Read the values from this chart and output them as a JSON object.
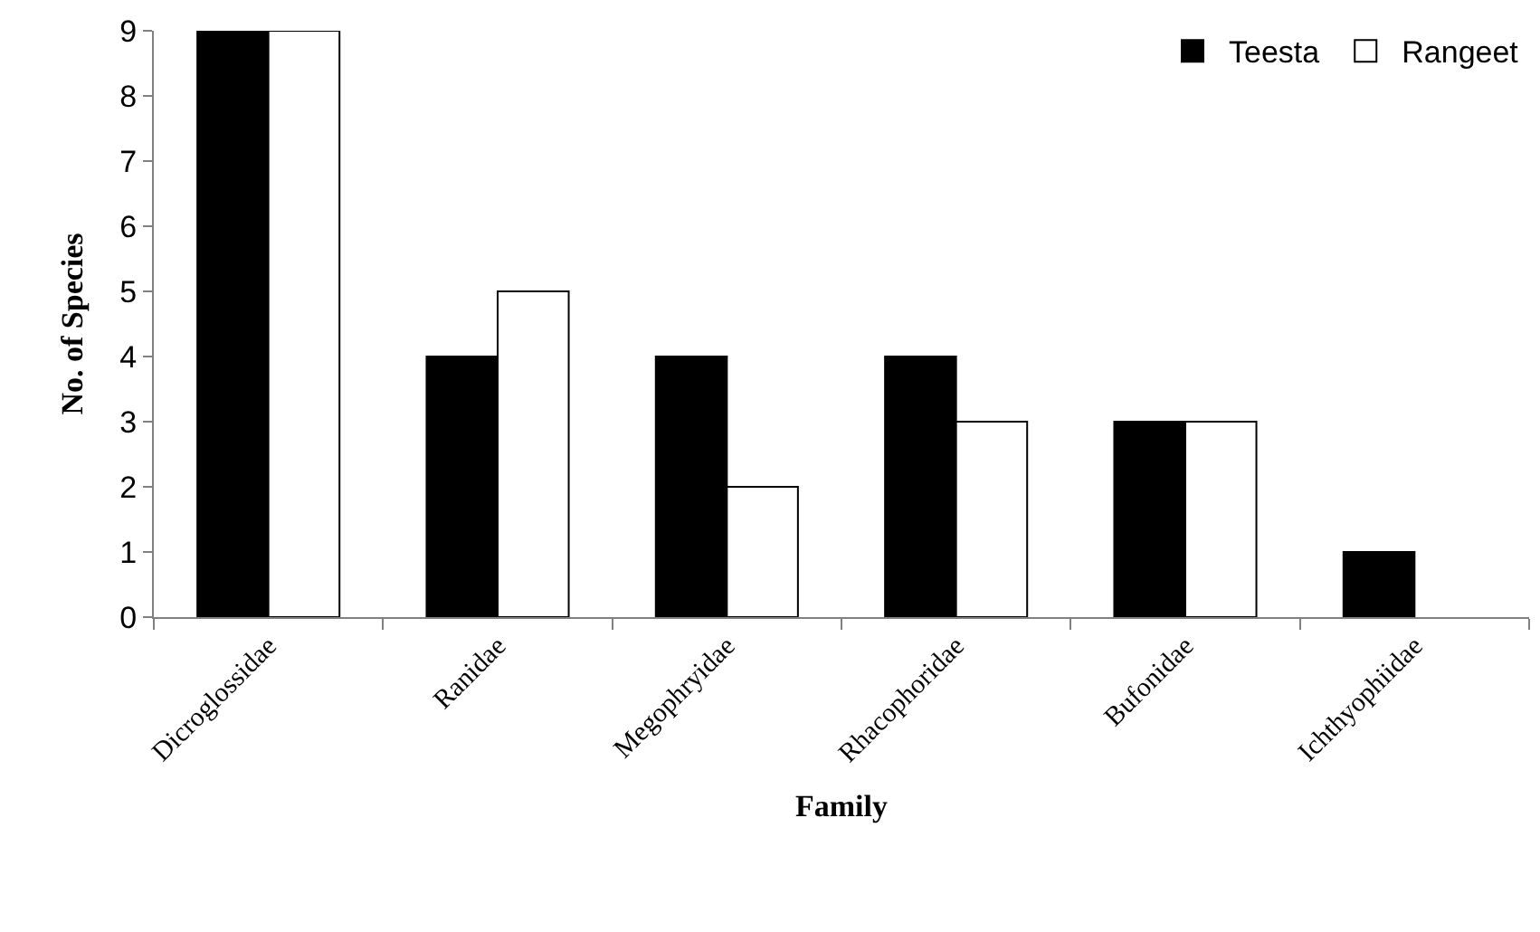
{
  "chart_data": {
    "type": "bar",
    "xlabel": "Family",
    "ylabel": "No. of Species",
    "categories": [
      "Dicroglossidae",
      "Ranidae",
      "Megophryidae",
      "Rhacophoridae",
      "Bufonidae",
      "Ichthyophiidae"
    ],
    "series": [
      {
        "name": "Teesta",
        "color": "#000000",
        "values": [
          9,
          4,
          4,
          4,
          3,
          1
        ]
      },
      {
        "name": "Rangeet",
        "color": "#ffffff",
        "values": [
          9,
          5,
          2,
          3,
          3,
          null
        ]
      }
    ],
    "ylim": [
      0,
      9
    ],
    "yticks": [
      0,
      1,
      2,
      3,
      4,
      5,
      6,
      7,
      8,
      9
    ],
    "legend": "top right"
  }
}
